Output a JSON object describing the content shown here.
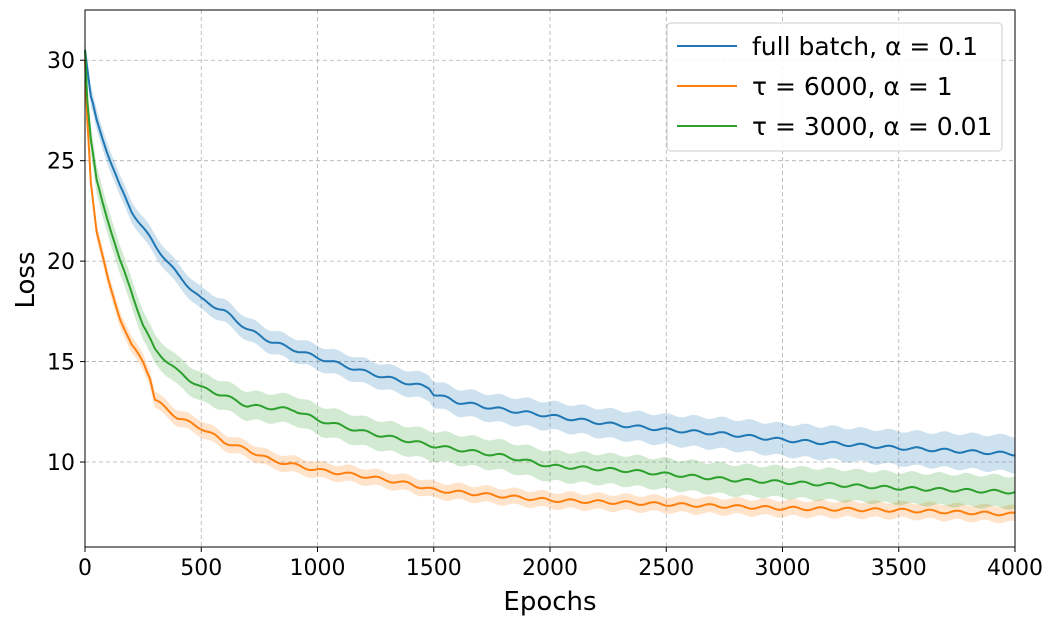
{
  "chart_data": {
    "type": "line",
    "title": "",
    "xlabel": "Epochs",
    "ylabel": "Loss",
    "xlim": [
      0,
      4000
    ],
    "ylim": [
      5.77,
      32.5
    ],
    "xticks": [
      0,
      500,
      1000,
      1500,
      2000,
      2500,
      3000,
      3500,
      4000
    ],
    "yticks": [
      10,
      15,
      20,
      25,
      30
    ],
    "grid": true,
    "legend_position": "top-right",
    "series": [
      {
        "name": "full batch, α = 0.1",
        "color": "#1f77b4",
        "band": [
          0.5,
          0.9
        ],
        "x": [
          0,
          25,
          50,
          100,
          150,
          200,
          300,
          400,
          500,
          600,
          700,
          800,
          1000,
          1200,
          1400,
          1480,
          1500,
          1600,
          1800,
          2000,
          2250,
          2500,
          2750,
          3000,
          3250,
          3500,
          3750,
          4000
        ],
        "y": [
          30.5,
          28.2,
          27,
          25.3,
          23.7,
          22.5,
          20.8,
          19.3,
          18.1,
          17.5,
          16.6,
          16.0,
          15.2,
          14.5,
          13.9,
          13.7,
          13.4,
          13.0,
          12.6,
          12.3,
          11.9,
          11.6,
          11.4,
          11.1,
          10.9,
          10.7,
          10.55,
          10.4
        ]
      },
      {
        "name": "τ = 6000, α = 1",
        "color": "#ff7f0e",
        "band": [
          0.4,
          0.4
        ],
        "x": [
          0,
          10,
          25,
          50,
          100,
          150,
          200,
          250,
          280,
          300,
          400,
          500,
          600,
          700,
          800,
          1000,
          1200,
          1400,
          1500,
          1750,
          2000,
          2250,
          2500,
          2750,
          3000,
          3500,
          4000
        ],
        "y": [
          30,
          27,
          24,
          21.5,
          19,
          17.2,
          15.8,
          15.0,
          14.2,
          13.1,
          12.2,
          11.7,
          11.0,
          10.6,
          10.1,
          9.6,
          9.3,
          8.9,
          8.6,
          8.35,
          8.1,
          8.0,
          7.9,
          7.8,
          7.7,
          7.6,
          7.4
        ]
      },
      {
        "name": "τ = 3000, α = 0.01",
        "color": "#2ca02c",
        "band": [
          0.7,
          0.8
        ],
        "x": [
          0,
          10,
          25,
          50,
          100,
          150,
          200,
          250,
          300,
          400,
          500,
          600,
          700,
          800,
          900,
          1000,
          1200,
          1500,
          1800,
          2000,
          2300,
          2500,
          2800,
          3000,
          3500,
          4000
        ],
        "y": [
          30.5,
          28,
          26,
          24,
          22,
          20,
          18.5,
          16.8,
          15.6,
          14.5,
          13.7,
          13.3,
          12.8,
          12.7,
          12.6,
          12.1,
          11.5,
          10.8,
          10.3,
          9.8,
          9.6,
          9.4,
          9.1,
          9.0,
          8.7,
          8.5
        ]
      }
    ]
  }
}
